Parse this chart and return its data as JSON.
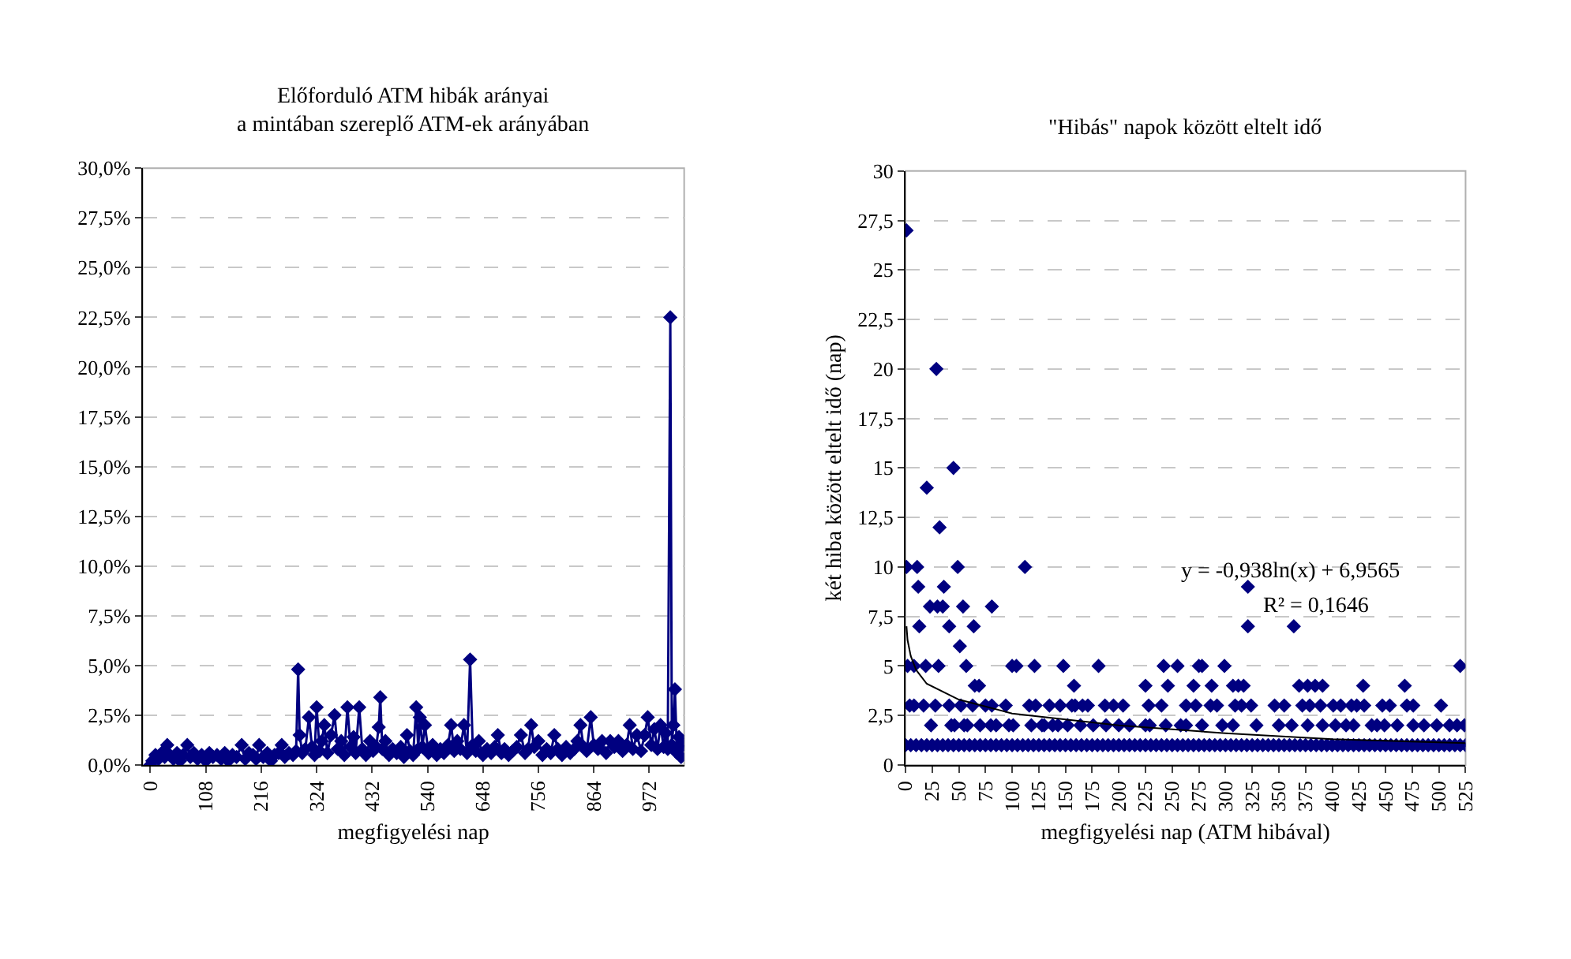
{
  "chart_data": [
    {
      "type": "line",
      "title": "Előforduló ATM hibák arányai\na mintában szereplő ATM-ek arányában",
      "xlabel": "megfigyelési nap",
      "marker": "diamond",
      "line_style": "solid",
      "grid": "y",
      "xlim": [
        -15,
        1040
      ],
      "xticks": [
        0,
        108,
        216,
        324,
        432,
        540,
        648,
        756,
        864,
        972
      ],
      "ylim": [
        0,
        30
      ],
      "yticks": [
        {
          "value": 0,
          "label": "0,0%"
        },
        {
          "value": 2.5,
          "label": "2,5%"
        },
        {
          "value": 5,
          "label": "5,0%"
        },
        {
          "value": 7.5,
          "label": "7,5%"
        },
        {
          "value": 10,
          "label": "10,0%"
        },
        {
          "value": 12.5,
          "label": "12,5%"
        },
        {
          "value": 15,
          "label": "15,0%"
        },
        {
          "value": 17.5,
          "label": "17,5%"
        },
        {
          "value": 20,
          "label": "20,0%"
        },
        {
          "value": 22.5,
          "label": "22,5%"
        },
        {
          "value": 25,
          "label": "25,0%"
        },
        {
          "value": 27.5,
          "label": "27,5%"
        },
        {
          "value": 30,
          "label": "30,0%"
        }
      ],
      "series": [
        {
          "color": "#000080",
          "x": [
            0,
            4,
            10,
            16,
            22,
            28,
            33,
            38,
            45,
            52,
            58,
            64,
            72,
            78,
            85,
            92,
            100,
            108,
            115,
            122,
            130,
            138,
            145,
            152,
            160,
            168,
            178,
            185,
            192,
            200,
            206,
            212,
            220,
            228,
            235,
            242,
            250,
            256,
            262,
            270,
            278,
            284,
            288,
            291,
            296,
            302,
            309,
            315,
            320,
            324,
            330,
            334,
            339,
            345,
            352,
            359,
            365,
            372,
            378,
            384,
            390,
            396,
            400,
            407,
            413,
            420,
            428,
            434,
            440,
            445,
            448,
            452,
            458,
            465,
            472,
            480,
            488,
            494,
            500,
            506,
            512,
            518,
            522,
            525,
            530,
            535,
            542,
            550,
            558,
            565,
            572,
            580,
            586,
            592,
            598,
            604,
            611,
            617,
            623,
            628,
            634,
            640,
            648,
            656,
            664,
            671,
            677,
            684,
            690,
            698,
            706,
            714,
            722,
            730,
            736,
            742,
            748,
            756,
            764,
            772,
            780,
            787,
            794,
            802,
            810,
            818,
            826,
            832,
            838,
            844,
            850,
            858,
            864,
            872,
            880,
            888,
            896,
            904,
            912,
            920,
            928,
            934,
            940,
            948,
            956,
            963,
            969,
            976,
            982,
            988,
            994,
            1000,
            1004,
            1008,
            1013,
            1016,
            1019,
            1022,
            1026,
            1030,
            1034,
            1038
          ],
          "values": [
            0,
            0.2,
            0.5,
            0.3,
            0.6,
            0.4,
            1.0,
            0.5,
            0.3,
            0.6,
            0.2,
            0.5,
            1.0,
            0.4,
            0.6,
            0.3,
            0.5,
            0.2,
            0.6,
            0.4,
            0.5,
            0.3,
            0.6,
            0.2,
            0.5,
            0.4,
            1.0,
            0.3,
            0.6,
            0.5,
            0.3,
            1.0,
            0.4,
            0.6,
            0.2,
            0.5,
            0.6,
            1.0,
            0.4,
            0.6,
            0.5,
            0.7,
            4.8,
            1.5,
            0.6,
            0.8,
            2.4,
            0.9,
            0.5,
            2.9,
            0.7,
            1.2,
            2.0,
            0.6,
            1.5,
            2.5,
            0.8,
            1.2,
            0.5,
            2.9,
            0.9,
            1.4,
            0.6,
            2.9,
            0.8,
            0.5,
            1.2,
            0.7,
            0.9,
            1.9,
            3.4,
            0.8,
            1.2,
            0.5,
            0.8,
            0.6,
            0.9,
            0.4,
            1.5,
            0.7,
            0.5,
            2.9,
            0.8,
            2.4,
            0.9,
            2.0,
            0.6,
            1.0,
            0.5,
            0.8,
            0.6,
            1.0,
            2.0,
            0.7,
            1.2,
            0.8,
            2.0,
            0.6,
            5.3,
            1.0,
            0.7,
            1.2,
            0.5,
            0.8,
            0.6,
            0.9,
            1.5,
            0.6,
            0.8,
            0.5,
            0.7,
            0.9,
            1.5,
            0.6,
            0.8,
            2.0,
            0.9,
            1.2,
            0.5,
            0.8,
            0.6,
            1.5,
            0.8,
            0.5,
            0.9,
            0.6,
            0.8,
            1.2,
            2.0,
            0.9,
            0.7,
            2.4,
            1.0,
            0.8,
            1.2,
            0.6,
            1.2,
            0.9,
            1.2,
            0.7,
            1.0,
            2.0,
            0.8,
            1.5,
            0.7,
            1.5,
            2.4,
            1.0,
            1.8,
            0.8,
            2.0,
            0.9,
            1.6,
            0.8,
            22.5,
            1.0,
            2.0,
            3.8,
            0.6,
            1.4,
            0.4,
            1.0
          ]
        }
      ]
    },
    {
      "type": "scatter",
      "title": "\"Hibás\" napok között eltelt idő",
      "xlabel": "megfigyelési nap (ATM hibával)",
      "ylabel": "két hiba között eltelt idő (nap)",
      "marker": "diamond",
      "grid": "y",
      "annotations": [
        "y = -0,938ln(x) + 6,9565",
        "R² = 0,1646"
      ],
      "xlim": [
        0,
        525
      ],
      "xticks": [
        0,
        25,
        50,
        75,
        100,
        125,
        150,
        175,
        200,
        225,
        250,
        275,
        300,
        325,
        350,
        375,
        400,
        425,
        450,
        475,
        500,
        525
      ],
      "ylim": [
        0,
        30
      ],
      "yticks": [
        0,
        {
          "value": 2.5,
          "label": "2,5"
        },
        5,
        {
          "value": 7.5,
          "label": "7,5"
        },
        10,
        {
          "value": 12.5,
          "label": "12,5"
        },
        15,
        {
          "value": 17.5,
          "label": "17,5"
        },
        20,
        {
          "value": 22.5,
          "label": "22,5"
        },
        25,
        {
          "value": 27.5,
          "label": "27,5"
        },
        30
      ],
      "series": [
        {
          "type": "scatter",
          "color": "#000080",
          "x": [
            0,
            5,
            10,
            15,
            20,
            25,
            30,
            35,
            40,
            45,
            50,
            55,
            60,
            65,
            70,
            75,
            80,
            85,
            90,
            95,
            100,
            105,
            110,
            115,
            120,
            125,
            130,
            135,
            140,
            145,
            150,
            155,
            160,
            165,
            170,
            175,
            180,
            185,
            190,
            195,
            200,
            205,
            210,
            215,
            220,
            225,
            230,
            235,
            240,
            245,
            250,
            255,
            260,
            265,
            270,
            275,
            280,
            285,
            290,
            295,
            300,
            305,
            310,
            315,
            320,
            325,
            330,
            335,
            340,
            345,
            350,
            355,
            360,
            365,
            370,
            375,
            380,
            385,
            390,
            395,
            400,
            405,
            410,
            415,
            420,
            425,
            430,
            435,
            440,
            445,
            450,
            455,
            460,
            465,
            470,
            475,
            480,
            485,
            490,
            495,
            500,
            505,
            510,
            515,
            520,
            525,
            24,
            43,
            46,
            55,
            58,
            70,
            80,
            85,
            97,
            101,
            118,
            128,
            130,
            138,
            143,
            152,
            164,
            176,
            188,
            200,
            210,
            225,
            229,
            244,
            258,
            263,
            278,
            297,
            307,
            329,
            350,
            362,
            377,
            391,
            403,
            413,
            420,
            437,
            442,
            449,
            461,
            476,
            486,
            498,
            510,
            517,
            524,
            4,
            8,
            17,
            28,
            41,
            52,
            63,
            75,
            81,
            94,
            116,
            122,
            135,
            145,
            156,
            159,
            166,
            171,
            187,
            195,
            204,
            228,
            240,
            263,
            272,
            286,
            292,
            309,
            315,
            324,
            346,
            355,
            372,
            379,
            389,
            401,
            408,
            418,
            423,
            430,
            447,
            454,
            470,
            476,
            502,
            65,
            69,
            158,
            225,
            246,
            270,
            287,
            307,
            312,
            317,
            369,
            377,
            384,
            391,
            429,
            468,
            2,
            8,
            19,
            31,
            57,
            100,
            104,
            121,
            148,
            181,
            242,
            255,
            275,
            278,
            299,
            520,
            51,
            13,
            41,
            64,
            321,
            364,
            23,
            30,
            35,
            54,
            81,
            12,
            36,
            321,
            1,
            11,
            49,
            112,
            32,
            20,
            45,
            29,
            1
          ],
          "values": [
            1,
            1,
            1,
            1,
            1,
            1,
            1,
            1,
            1,
            1,
            1,
            1,
            1,
            1,
            1,
            1,
            1,
            1,
            1,
            1,
            1,
            1,
            1,
            1,
            1,
            1,
            1,
            1,
            1,
            1,
            1,
            1,
            1,
            1,
            1,
            1,
            1,
            1,
            1,
            1,
            1,
            1,
            1,
            1,
            1,
            1,
            1,
            1,
            1,
            1,
            1,
            1,
            1,
            1,
            1,
            1,
            1,
            1,
            1,
            1,
            1,
            1,
            1,
            1,
            1,
            1,
            1,
            1,
            1,
            1,
            1,
            1,
            1,
            1,
            1,
            1,
            1,
            1,
            1,
            1,
            1,
            1,
            1,
            1,
            1,
            1,
            1,
            1,
            1,
            1,
            1,
            1,
            1,
            1,
            1,
            1,
            1,
            1,
            1,
            1,
            1,
            1,
            1,
            1,
            1,
            1,
            2,
            2,
            2,
            2,
            2,
            2,
            2,
            2,
            2,
            2,
            2,
            2,
            2,
            2,
            2,
            2,
            2,
            2,
            2,
            2,
            2,
            2,
            2,
            2,
            2,
            2,
            2,
            2,
            2,
            2,
            2,
            2,
            2,
            2,
            2,
            2,
            2,
            2,
            2,
            2,
            2,
            2,
            2,
            2,
            2,
            2,
            2,
            3,
            3,
            3,
            3,
            3,
            3,
            3,
            3,
            3,
            3,
            3,
            3,
            3,
            3,
            3,
            3,
            3,
            3,
            3,
            3,
            3,
            3,
            3,
            3,
            3,
            3,
            3,
            3,
            3,
            3,
            3,
            3,
            3,
            3,
            3,
            3,
            3,
            3,
            3,
            3,
            3,
            3,
            3,
            3,
            3,
            4,
            4,
            4,
            4,
            4,
            4,
            4,
            4,
            4,
            4,
            4,
            4,
            4,
            4,
            4,
            4,
            5,
            5,
            5,
            5,
            5,
            5,
            5,
            5,
            5,
            5,
            5,
            5,
            5,
            5,
            5,
            5,
            6,
            7,
            7,
            7,
            7,
            7,
            8,
            8,
            8,
            8,
            8,
            9,
            9,
            9,
            10,
            10,
            10,
            10,
            12,
            14,
            15,
            20,
            27
          ]
        },
        {
          "type": "line",
          "color": "#000000",
          "marker": "none",
          "x": [
            1,
            2,
            5,
            10,
            20,
            50,
            100,
            200,
            300,
            400,
            525
          ],
          "values": [
            7.0,
            6.3,
            5.5,
            4.8,
            4.1,
            3.3,
            2.6,
            2.0,
            1.6,
            1.3,
            1.1
          ]
        }
      ]
    }
  ]
}
